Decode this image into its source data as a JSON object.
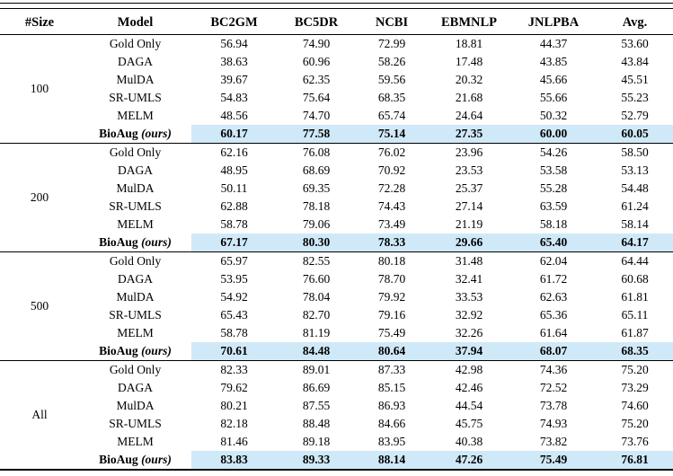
{
  "table": {
    "highlight_color": "#d0e9f8",
    "columns": [
      "#Size",
      "Model",
      "BC2GM",
      "BC5DR",
      "NCBI",
      "EBMNLP",
      "JNLPBA",
      "Avg."
    ],
    "ours_suffix": "(ours)",
    "groups": [
      {
        "size": "100",
        "rows": [
          {
            "model": "Gold Only",
            "suffix": "",
            "highlight": false,
            "values": [
              "56.94",
              "74.90",
              "72.99",
              "18.81",
              "44.37",
              "53.60"
            ]
          },
          {
            "model": "DAGA",
            "suffix": "",
            "highlight": false,
            "values": [
              "38.63",
              "60.96",
              "58.26",
              "17.48",
              "43.85",
              "43.84"
            ]
          },
          {
            "model": "MulDA",
            "suffix": "",
            "highlight": false,
            "values": [
              "39.67",
              "62.35",
              "59.56",
              "20.32",
              "45.66",
              "45.51"
            ]
          },
          {
            "model": "SR-UMLS",
            "suffix": "",
            "highlight": false,
            "values": [
              "54.83",
              "75.64",
              "68.35",
              "21.68",
              "55.66",
              "55.23"
            ]
          },
          {
            "model": "MELM",
            "suffix": "",
            "highlight": false,
            "values": [
              "48.56",
              "74.70",
              "65.74",
              "24.64",
              "50.32",
              "52.79"
            ]
          },
          {
            "model": "BioAug",
            "suffix": "(ours)",
            "highlight": true,
            "values": [
              "60.17",
              "77.58",
              "75.14",
              "27.35",
              "60.00",
              "60.05"
            ]
          }
        ]
      },
      {
        "size": "200",
        "rows": [
          {
            "model": "Gold Only",
            "suffix": "",
            "highlight": false,
            "values": [
              "62.16",
              "76.08",
              "76.02",
              "23.96",
              "54.26",
              "58.50"
            ]
          },
          {
            "model": "DAGA",
            "suffix": "",
            "highlight": false,
            "values": [
              "48.95",
              "68.69",
              "70.92",
              "23.53",
              "53.58",
              "53.13"
            ]
          },
          {
            "model": "MulDA",
            "suffix": "",
            "highlight": false,
            "values": [
              "50.11",
              "69.35",
              "72.28",
              "25.37",
              "55.28",
              "54.48"
            ]
          },
          {
            "model": "SR-UMLS",
            "suffix": "",
            "highlight": false,
            "values": [
              "62.88",
              "78.18",
              "74.43",
              "27.14",
              "63.59",
              "61.24"
            ]
          },
          {
            "model": "MELM",
            "suffix": "",
            "highlight": false,
            "values": [
              "58.78",
              "79.06",
              "73.49",
              "21.19",
              "58.18",
              "58.14"
            ]
          },
          {
            "model": "BioAug",
            "suffix": "(ours)",
            "highlight": true,
            "values": [
              "67.17",
              "80.30",
              "78.33",
              "29.66",
              "65.40",
              "64.17"
            ]
          }
        ]
      },
      {
        "size": "500",
        "rows": [
          {
            "model": "Gold Only",
            "suffix": "",
            "highlight": false,
            "values": [
              "65.97",
              "82.55",
              "80.18",
              "31.48",
              "62.04",
              "64.44"
            ]
          },
          {
            "model": "DAGA",
            "suffix": "",
            "highlight": false,
            "values": [
              "53.95",
              "76.60",
              "78.70",
              "32.41",
              "61.72",
              "60.68"
            ]
          },
          {
            "model": "MulDA",
            "suffix": "",
            "highlight": false,
            "values": [
              "54.92",
              "78.04",
              "79.92",
              "33.53",
              "62.63",
              "61.81"
            ]
          },
          {
            "model": "SR-UMLS",
            "suffix": "",
            "highlight": false,
            "values": [
              "65.43",
              "82.70",
              "79.16",
              "32.92",
              "65.36",
              "65.11"
            ]
          },
          {
            "model": "MELM",
            "suffix": "",
            "highlight": false,
            "values": [
              "58.78",
              "81.19",
              "75.49",
              "32.26",
              "61.64",
              "61.87"
            ]
          },
          {
            "model": "BioAug",
            "suffix": "(ours)",
            "highlight": true,
            "values": [
              "70.61",
              "84.48",
              "80.64",
              "37.94",
              "68.07",
              "68.35"
            ]
          }
        ]
      },
      {
        "size": "All",
        "rows": [
          {
            "model": "Gold Only",
            "suffix": "",
            "highlight": false,
            "values": [
              "82.33",
              "89.01",
              "87.33",
              "42.98",
              "74.36",
              "75.20"
            ]
          },
          {
            "model": "DAGA",
            "suffix": "",
            "highlight": false,
            "values": [
              "79.62",
              "86.69",
              "85.15",
              "42.46",
              "72.52",
              "73.29"
            ]
          },
          {
            "model": "MulDA",
            "suffix": "",
            "highlight": false,
            "values": [
              "80.21",
              "87.55",
              "86.93",
              "44.54",
              "73.78",
              "74.60"
            ]
          },
          {
            "model": "SR-UMLS",
            "suffix": "",
            "highlight": false,
            "values": [
              "82.18",
              "88.48",
              "84.66",
              "45.75",
              "74.93",
              "75.20"
            ]
          },
          {
            "model": "MELM",
            "suffix": "",
            "highlight": false,
            "values": [
              "81.46",
              "89.18",
              "83.95",
              "40.38",
              "73.82",
              "73.76"
            ]
          },
          {
            "model": "BioAug",
            "suffix": "(ours)",
            "highlight": true,
            "values": [
              "83.83",
              "89.33",
              "88.14",
              "47.26",
              "75.49",
              "76.81"
            ]
          }
        ]
      }
    ]
  }
}
